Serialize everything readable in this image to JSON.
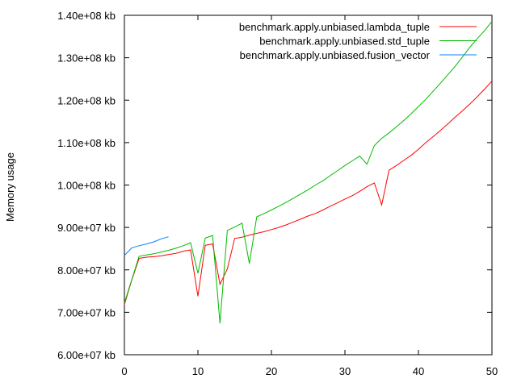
{
  "chart_data": {
    "type": "line",
    "title": "",
    "xlabel": "",
    "ylabel": "Memory usage",
    "xlim": [
      0,
      50
    ],
    "ylim": [
      60000000,
      140000000
    ],
    "grid": false,
    "legend_position": "top-right",
    "x_ticks": [
      0,
      10,
      20,
      30,
      40,
      50
    ],
    "x_tick_labels": [
      "0",
      "10",
      "20",
      "30",
      "40",
      "50"
    ],
    "y_ticks": [
      60000000,
      70000000,
      80000000,
      90000000,
      100000000,
      110000000,
      120000000,
      130000000,
      140000000
    ],
    "y_tick_labels": [
      "6.00e+07 kb",
      "7.00e+07 kb",
      "8.00e+07 kb",
      "9.00e+07 kb",
      "1.00e+08 kb",
      "1.10e+08 kb",
      "1.20e+08 kb",
      "1.30e+08 kb",
      "1.40e+08 kb"
    ],
    "series": [
      {
        "name": "benchmark.apply.unbiased.lambda_tuple",
        "color": "#ff0000",
        "x": [
          0,
          1,
          2,
          3,
          4,
          5,
          6,
          7,
          8,
          9,
          10,
          11,
          12,
          13,
          14,
          15,
          16,
          17,
          18,
          19,
          20,
          21,
          22,
          23,
          24,
          25,
          26,
          27,
          28,
          29,
          30,
          31,
          32,
          33,
          34,
          35,
          36,
          37,
          38,
          39,
          40,
          41,
          42,
          43,
          44,
          45,
          46,
          47,
          48,
          49,
          50
        ],
        "values": [
          71800000,
          77600000,
          82700000,
          83000000,
          83100000,
          83300000,
          83600000,
          83900000,
          84400000,
          84700000,
          73800000,
          85800000,
          86100000,
          76600000,
          80200000,
          87400000,
          87700000,
          88200000,
          88600000,
          89000000,
          89500000,
          90000000,
          90600000,
          91300000,
          92000000,
          92700000,
          93300000,
          94100000,
          95000000,
          95800000,
          96700000,
          97500000,
          98500000,
          99600000,
          100500000,
          95300000,
          103500000,
          104600000,
          105800000,
          107000000,
          108400000,
          110000000,
          111400000,
          112900000,
          114400000,
          116000000,
          117500000,
          119100000,
          120800000,
          122600000,
          124500000
        ]
      },
      {
        "name": "benchmark.apply.unbiased.std_tuple",
        "color": "#00bb00",
        "x": [
          0,
          1,
          2,
          3,
          4,
          5,
          6,
          7,
          8,
          9,
          10,
          11,
          12,
          13,
          14,
          15,
          16,
          17,
          18,
          19,
          20,
          21,
          22,
          23,
          24,
          25,
          26,
          27,
          28,
          29,
          30,
          31,
          32,
          33,
          34,
          35,
          36,
          37,
          38,
          39,
          40,
          41,
          42,
          43,
          44,
          45,
          46,
          47,
          48,
          49,
          50
        ],
        "values": [
          72200000,
          77700000,
          83200000,
          83500000,
          83800000,
          84200000,
          84600000,
          85100000,
          85700000,
          86400000,
          79200000,
          87500000,
          88100000,
          67400000,
          89300000,
          90100000,
          91000000,
          81500000,
          92500000,
          93300000,
          94100000,
          95000000,
          95900000,
          96900000,
          97900000,
          98900000,
          100000000,
          101000000,
          102200000,
          103400000,
          104600000,
          105700000,
          106800000,
          104900000,
          109300000,
          111000000,
          112300000,
          113700000,
          115200000,
          116800000,
          118500000,
          120200000,
          122100000,
          124000000,
          126000000,
          128000000,
          130200000,
          132500000,
          134500000,
          136400000,
          138600000
        ]
      },
      {
        "name": "benchmark.apply.unbiased.fusion_vector",
        "color": "#0080ff",
        "x": [
          0,
          1,
          2,
          3,
          4,
          5,
          6
        ],
        "values": [
          83400000,
          85200000,
          85700000,
          86100000,
          86600000,
          87300000,
          87800000
        ]
      }
    ]
  }
}
